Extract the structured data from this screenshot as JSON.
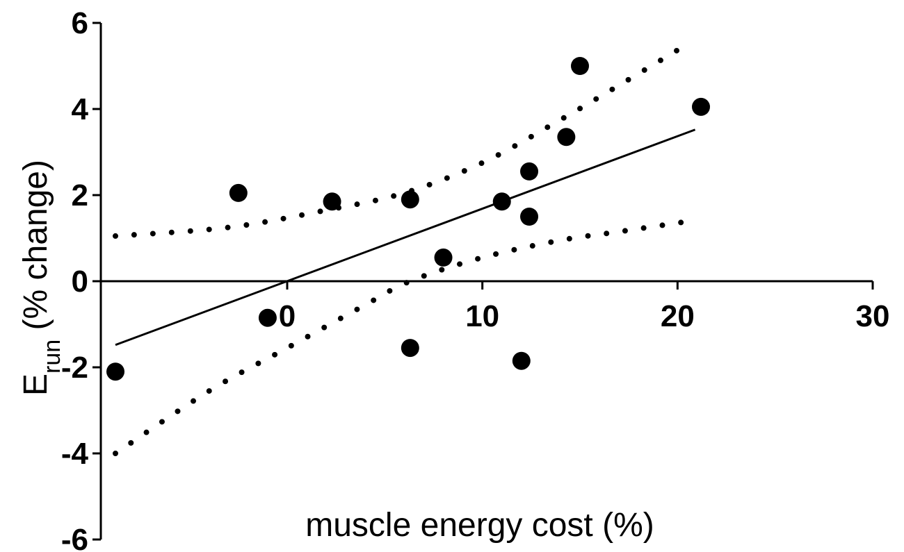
{
  "chart_data": {
    "type": "scatter",
    "title": "",
    "xlabel": "muscle energy cost (%)",
    "ylabel": {
      "main": "E",
      "subscript": "run",
      "rest": " (% change)"
    },
    "xlim": [
      -9,
      30
    ],
    "ylim": [
      -6,
      6
    ],
    "x_ticks": [
      0,
      10,
      20,
      30
    ],
    "x_tick_labels": [
      "0",
      "10",
      "20",
      "30"
    ],
    "y_ticks": [
      6,
      4,
      2,
      0,
      -2,
      -4,
      -6
    ],
    "y_tick_labels": [
      "6",
      "4",
      "2",
      "0",
      "-2",
      "-4",
      "-6"
    ],
    "grid": false,
    "legend": "none",
    "series": [
      {
        "kind": "points",
        "points": [
          {
            "x": -8.8,
            "y": -2.1
          },
          {
            "x": -2.5,
            "y": 2.05
          },
          {
            "x": -1.0,
            "y": -0.85
          },
          {
            "x": 2.3,
            "y": 1.85
          },
          {
            "x": 6.3,
            "y": 1.9
          },
          {
            "x": 6.3,
            "y": -1.55
          },
          {
            "x": 8.0,
            "y": 0.55
          },
          {
            "x": 11.0,
            "y": 1.85
          },
          {
            "x": 12.0,
            "y": -1.85
          },
          {
            "x": 12.4,
            "y": 2.55
          },
          {
            "x": 12.4,
            "y": 1.5
          },
          {
            "x": 14.3,
            "y": 3.35
          },
          {
            "x": 15.0,
            "y": 5.0
          },
          {
            "x": 21.2,
            "y": 4.05
          }
        ]
      },
      {
        "kind": "regression-line",
        "points": [
          {
            "x": -8.8,
            "y": -1.48
          },
          {
            "x": 20.9,
            "y": 3.52
          }
        ]
      },
      {
        "kind": "confidence-band-upper",
        "points": [
          {
            "x": -8.8,
            "y": 1.05
          },
          {
            "x": -3.0,
            "y": 1.25
          },
          {
            "x": 2.0,
            "y": 1.65
          },
          {
            "x": 6.0,
            "y": 2.05
          },
          {
            "x": 10.0,
            "y": 2.75
          },
          {
            "x": 14.0,
            "y": 3.75
          },
          {
            "x": 17.0,
            "y": 4.55
          },
          {
            "x": 20.3,
            "y": 5.45
          }
        ]
      },
      {
        "kind": "confidence-band-lower",
        "points": [
          {
            "x": -8.8,
            "y": -4.0
          },
          {
            "x": -4.0,
            "y": -2.55
          },
          {
            "x": 0.0,
            "y": -1.55
          },
          {
            "x": 4.0,
            "y": -0.55
          },
          {
            "x": 6.3,
            "y": 0.0
          },
          {
            "x": 10.0,
            "y": 0.55
          },
          {
            "x": 14.0,
            "y": 0.95
          },
          {
            "x": 17.0,
            "y": 1.15
          },
          {
            "x": 20.7,
            "y": 1.4
          }
        ]
      }
    ]
  }
}
